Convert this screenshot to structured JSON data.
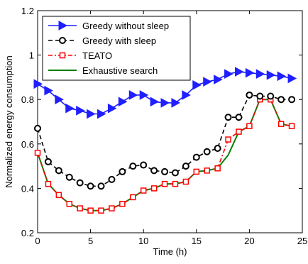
{
  "chart_data": {
    "type": "line",
    "xlabel": "Time (h)",
    "ylabel": "Normalized energy consumption",
    "xlim": [
      0,
      25
    ],
    "ylim": [
      0.2,
      1.2
    ],
    "xticks": [
      0,
      5,
      10,
      15,
      20,
      25
    ],
    "yticks": [
      0.2,
      0.4,
      0.6,
      0.8,
      1,
      1.2
    ],
    "xtick_labels": [
      "0",
      "5",
      "10",
      "15",
      "20",
      "25"
    ],
    "ytick_labels": [
      "0.2",
      "0.4",
      "0.6",
      "0.8",
      "1",
      "1.2"
    ],
    "grid": false,
    "legend_position": "top-left",
    "x": [
      0,
      1,
      2,
      3,
      4,
      5,
      6,
      7,
      8,
      9,
      10,
      11,
      12,
      13,
      14,
      15,
      16,
      17,
      18,
      19,
      20,
      21,
      22,
      23,
      24
    ],
    "series": [
      {
        "name": "Greedy without sleep",
        "color": "#1f1fff",
        "marker": "triangle-right",
        "dash": "solid",
        "values": [
          0.87,
          0.84,
          0.8,
          0.76,
          0.75,
          0.735,
          0.735,
          0.76,
          0.79,
          0.82,
          0.82,
          0.79,
          0.785,
          0.785,
          0.82,
          0.865,
          0.88,
          0.89,
          0.915,
          0.925,
          0.92,
          0.915,
          0.91,
          0.905,
          0.895
        ]
      },
      {
        "name": "Greedy with sleep",
        "color": "#000000",
        "marker": "circle",
        "dash": "dashed",
        "values": [
          0.67,
          0.52,
          0.48,
          0.45,
          0.425,
          0.41,
          0.41,
          0.44,
          0.475,
          0.5,
          0.505,
          0.48,
          0.475,
          0.47,
          0.5,
          0.54,
          0.565,
          0.58,
          0.72,
          0.72,
          0.82,
          0.815,
          0.815,
          0.8,
          0.8
        ]
      },
      {
        "name": "TEATO",
        "color": "#ff0000",
        "marker": "square",
        "dash": "dashdot",
        "values": [
          0.56,
          0.42,
          0.37,
          0.33,
          0.31,
          0.3,
          0.3,
          0.31,
          0.33,
          0.36,
          0.39,
          0.4,
          0.42,
          0.42,
          0.43,
          0.475,
          0.48,
          0.49,
          0.62,
          0.655,
          0.68,
          0.8,
          0.8,
          0.69,
          0.68
        ]
      },
      {
        "name": "Exhaustive search",
        "color": "#008000",
        "marker": "none",
        "dash": "solid",
        "values": [
          0.56,
          0.42,
          0.37,
          0.33,
          0.31,
          0.3,
          0.3,
          0.31,
          0.33,
          0.36,
          0.39,
          0.4,
          0.42,
          0.42,
          0.43,
          0.475,
          0.48,
          0.49,
          0.55,
          0.655,
          0.68,
          0.8,
          0.8,
          0.69,
          0.68
        ]
      }
    ]
  }
}
